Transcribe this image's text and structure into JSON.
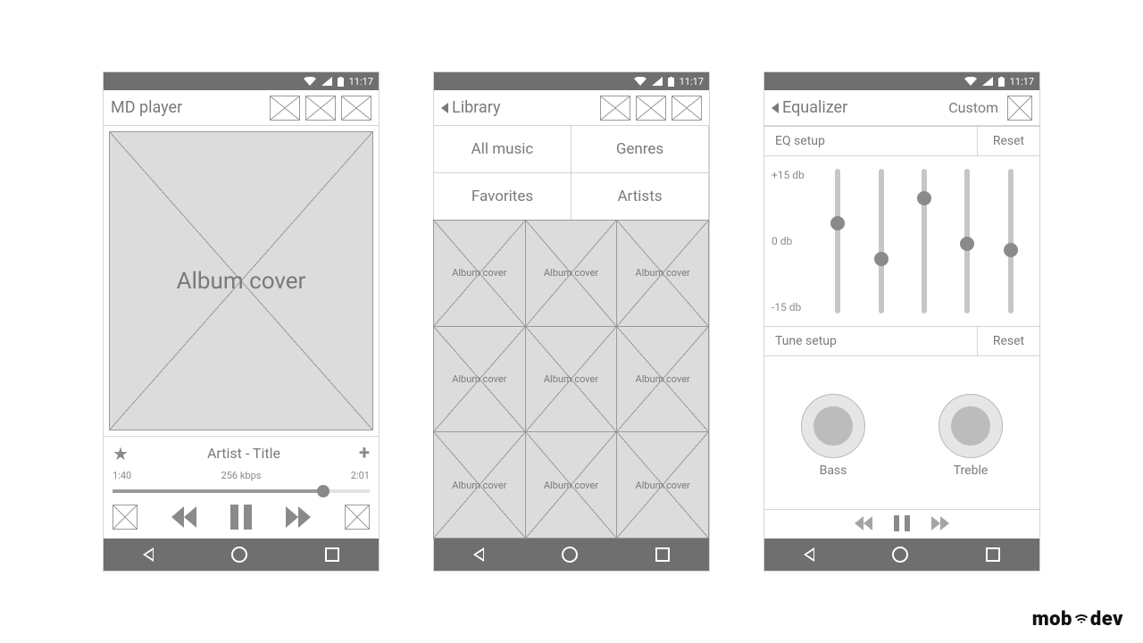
{
  "colors": {
    "chrome": "#6f6f6f",
    "line": "#d4d4d4",
    "ph_line": "#9a9a9a",
    "ph_fill": "#dcdcdc",
    "text": "#7a7a7a",
    "icon": "#8a8a8a",
    "white": "#ffffff"
  },
  "statusbar": {
    "time": "11:17"
  },
  "player": {
    "app_title": "MD player",
    "album_cover_label": "Album cover",
    "track_line": "Artist - Title",
    "elapsed": "1:40",
    "bitrate": "256 kbps",
    "total": "2:01",
    "progress_pct": 82
  },
  "library": {
    "title": "Library",
    "categories": [
      "All music",
      "Genres",
      "Favorites",
      "Artists"
    ],
    "thumb_label": "Album cover",
    "thumb_count": 9
  },
  "equalizer": {
    "title": "Equalizer",
    "preset_label": "Custom",
    "eq_setup_label": "EQ setup",
    "reset_label": "Reset",
    "tune_setup_label": "Tune setup",
    "scale_labels": [
      "+15 db",
      "0 db",
      "-15 db"
    ],
    "slider_values_pct": [
      62,
      38,
      78,
      48,
      44
    ],
    "knobs": [
      "Bass",
      "Treble"
    ]
  },
  "brand": {
    "pre": "mob",
    "post": "dev"
  }
}
